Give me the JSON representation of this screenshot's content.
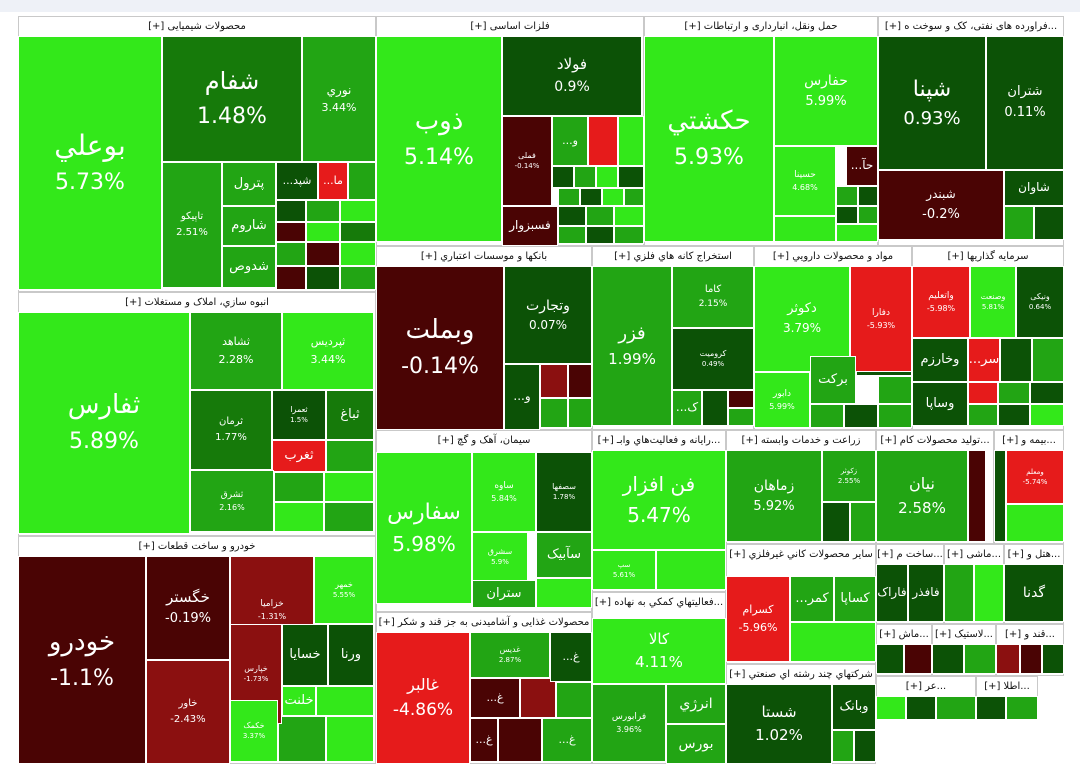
{
  "colors": {
    "bright_green": "#33e81a",
    "green": "#22a514",
    "mid_green": "#167a0a",
    "dark_green": "#0c5206",
    "dark_red": "#4a0404",
    "red": "#e61b1b",
    "brick": "#8b1010"
  },
  "chart_data": {
    "type": "treemap",
    "title": "",
    "sectors": [
      {
        "name": "محصولات شیمیایی [+]",
        "stocks": [
          {
            "symbol": "بوعلي",
            "change": "5.73%"
          },
          {
            "symbol": "شفام",
            "change": "1.48%"
          },
          {
            "symbol": "نوري",
            "change": "3.44%"
          },
          {
            "symbol": "تاپیکو",
            "change": "2.51%"
          },
          {
            "symbol": "پترول",
            "change": ""
          },
          {
            "symbol": "شاروم",
            "change": ""
          },
          {
            "symbol": "شدوص",
            "change": ""
          },
          {
            "symbol": "...شپد",
            "change": ""
          },
          {
            "symbol": "...ما",
            "change": ""
          }
        ]
      },
      {
        "name": "فلزات اساسی [+]",
        "stocks": [
          {
            "symbol": "ذوب",
            "change": "5.14%"
          },
          {
            "symbol": "فولاد",
            "change": "0.9%"
          },
          {
            "symbol": "فملی",
            "change": "-0.14%"
          },
          {
            "symbol": "فسبزوار",
            "change": ""
          },
          {
            "symbol": "...و",
            "change": ""
          }
        ]
      },
      {
        "name": "حمل ونقل، انبارداری و ارتباطات [+]",
        "stocks": [
          {
            "symbol": "حکشتي",
            "change": "5.93%"
          },
          {
            "symbol": "حفارس",
            "change": "5.99%"
          },
          {
            "symbol": "حسینا",
            "change": "4.68%"
          },
          {
            "symbol": "...حآ",
            "change": ""
          }
        ]
      },
      {
        "name": "...فراورده های نفتی، کک و سوخت ه [+]",
        "stocks": [
          {
            "symbol": "شپنا",
            "change": "0.93%"
          },
          {
            "symbol": "شتران",
            "change": "0.11%"
          },
          {
            "symbol": "شبندر",
            "change": "-0.2%"
          },
          {
            "symbol": "شاوان",
            "change": ""
          }
        ]
      },
      {
        "name": "انبوه سازي، املاک و مستغلات [+]",
        "stocks": [
          {
            "symbol": "ثفارس",
            "change": "5.89%"
          },
          {
            "symbol": "ثشاهد",
            "change": "2.28%"
          },
          {
            "symbol": "ثپردیس",
            "change": "3.44%"
          },
          {
            "symbol": "ثرمان",
            "change": "1.77%"
          },
          {
            "symbol": "ثعمرا",
            "change": "1.5%"
          },
          {
            "symbol": "ثباغ",
            "change": ""
          },
          {
            "symbol": "ثغرب",
            "change": ""
          },
          {
            "symbol": "ثشرق",
            "change": "2.16%"
          }
        ]
      },
      {
        "name": "بانکها و موسسات اعتباري [+]",
        "stocks": [
          {
            "symbol": "وبملت",
            "change": "-0.14%"
          },
          {
            "symbol": "وتجارت",
            "change": "0.07%"
          },
          {
            "symbol": "...و",
            "change": ""
          }
        ]
      },
      {
        "name": "استخراج کانه هاي فلزي [+]",
        "stocks": [
          {
            "symbol": "فزر",
            "change": "1.99%"
          },
          {
            "symbol": "کاما",
            "change": "2.15%"
          },
          {
            "symbol": "کروميت",
            "change": "0.49%"
          },
          {
            "symbol": "...ک",
            "change": ""
          }
        ]
      },
      {
        "name": "مواد و محصولات دارويي [+]",
        "stocks": [
          {
            "symbol": "دکوثر",
            "change": "3.79%"
          },
          {
            "symbol": "دفارا",
            "change": "-5.93%"
          },
          {
            "symbol": "دابور",
            "change": "5.99%"
          },
          {
            "symbol": "برکت",
            "change": ""
          }
        ]
      },
      {
        "name": "سرمایه گذاریها [+]",
        "stocks": [
          {
            "symbol": "واتعلیم",
            "change": "-5.98%"
          },
          {
            "symbol": "وصنعت",
            "change": "5.81%"
          },
          {
            "symbol": "ونیکی",
            "change": "0.64%"
          },
          {
            "symbol": "وخارزم",
            "change": ""
          },
          {
            "symbol": "...سر",
            "change": ""
          },
          {
            "symbol": "وساپا",
            "change": ""
          }
        ]
      },
      {
        "name": "خودرو و ساخت قطعات [+]",
        "stocks": [
          {
            "symbol": "خودرو",
            "change": "-1.1%"
          },
          {
            "symbol": "خگستر",
            "change": "-0.19%"
          },
          {
            "symbol": "خزامیا",
            "change": "-1.31%"
          },
          {
            "symbol": "خمهر",
            "change": "5.55%"
          },
          {
            "symbol": "خاور",
            "change": "-2.43%"
          },
          {
            "symbol": "خپارس",
            "change": "-1.73%"
          },
          {
            "symbol": "خسایا",
            "change": ""
          },
          {
            "symbol": "ورنا",
            "change": ""
          },
          {
            "symbol": "خلنت",
            "change": ""
          },
          {
            "symbol": "خکمک",
            "change": "3.37%"
          }
        ]
      },
      {
        "name": "سیمان، آهک و گچ [+]",
        "stocks": [
          {
            "symbol": "سفارس",
            "change": "5.98%"
          },
          {
            "symbol": "ساوه",
            "change": "5.84%"
          },
          {
            "symbol": "سصفها",
            "change": "1.78%"
          },
          {
            "symbol": "سشرق",
            "change": "5.9%"
          },
          {
            "symbol": "سآبیک",
            "change": ""
          },
          {
            "symbol": "ستران",
            "change": ""
          }
        ]
      },
      {
        "name": "...رایانه و فعالیت‌هاي وابـ [+]",
        "stocks": [
          {
            "symbol": "فن افزار",
            "change": "5.47%"
          },
          {
            "symbol": "سپ",
            "change": "5.61%"
          }
        ]
      },
      {
        "name": "زراعت و خدمات وابسته [+]",
        "stocks": [
          {
            "symbol": "زماهان",
            "change": "5.92%"
          },
          {
            "symbol": "زکوثر",
            "change": "2.55%"
          }
        ]
      },
      {
        "name": "...تولید محصولات کام [+]",
        "stocks": [
          {
            "symbol": "نیان",
            "change": "2.58%"
          }
        ]
      },
      {
        "name": "...بیمه و [+]",
        "stocks": [
          {
            "symbol": "ومعلم",
            "change": "-5.74%"
          }
        ]
      },
      {
        "name": "محصولات غذایی و آشامیدنی به جز قند و شکر [+]",
        "stocks": [
          {
            "symbol": "غالبر",
            "change": "-4.86%"
          },
          {
            "symbol": "غدیس",
            "change": "2.87%"
          },
          {
            "symbol": "...غ",
            "change": ""
          },
          {
            "symbol": "...غ",
            "change": ""
          },
          {
            "symbol": "...غ",
            "change": ""
          },
          {
            "symbol": "...غ",
            "change": ""
          }
        ]
      },
      {
        "name": "...فعالیتهاي کمکي به نهاده [+]",
        "stocks": [
          {
            "symbol": "کالا",
            "change": "4.11%"
          },
          {
            "symbol": "فرابورس",
            "change": "3.96%"
          },
          {
            "symbol": "انرژي",
            "change": ""
          },
          {
            "symbol": "بورس",
            "change": ""
          }
        ]
      },
      {
        "name": "سایر محصولات کاني غیرفلزي [+]",
        "stocks": [
          {
            "symbol": "کسرام",
            "change": "-5.96%"
          },
          {
            "symbol": "...کمر",
            "change": ""
          },
          {
            "symbol": "کساپا",
            "change": ""
          }
        ]
      },
      {
        "name": "...ساخت م [+]",
        "stocks": [
          {
            "symbol": "فاراک",
            "change": ""
          },
          {
            "symbol": "فافذر",
            "change": ""
          }
        ]
      },
      {
        "name": "...ماشی [+]",
        "stocks": []
      },
      {
        "name": "...هتل و [+]",
        "stocks": [
          {
            "symbol": "گدنا",
            "change": ""
          }
        ]
      },
      {
        "name": "شرکتهاي چند رشته اي صنعتي [+]",
        "stocks": [
          {
            "symbol": "شستا",
            "change": "1.02%"
          },
          {
            "symbol": "وبانک",
            "change": ""
          }
        ]
      },
      {
        "name": "...ماش [+]",
        "stocks": []
      },
      {
        "name": "...لاستیک [+]",
        "stocks": []
      },
      {
        "name": "...قند و [+]",
        "stocks": []
      },
      {
        "name": "...عر [+]",
        "stocks": []
      },
      {
        "name": "...اطلا [+]",
        "stocks": []
      }
    ]
  }
}
